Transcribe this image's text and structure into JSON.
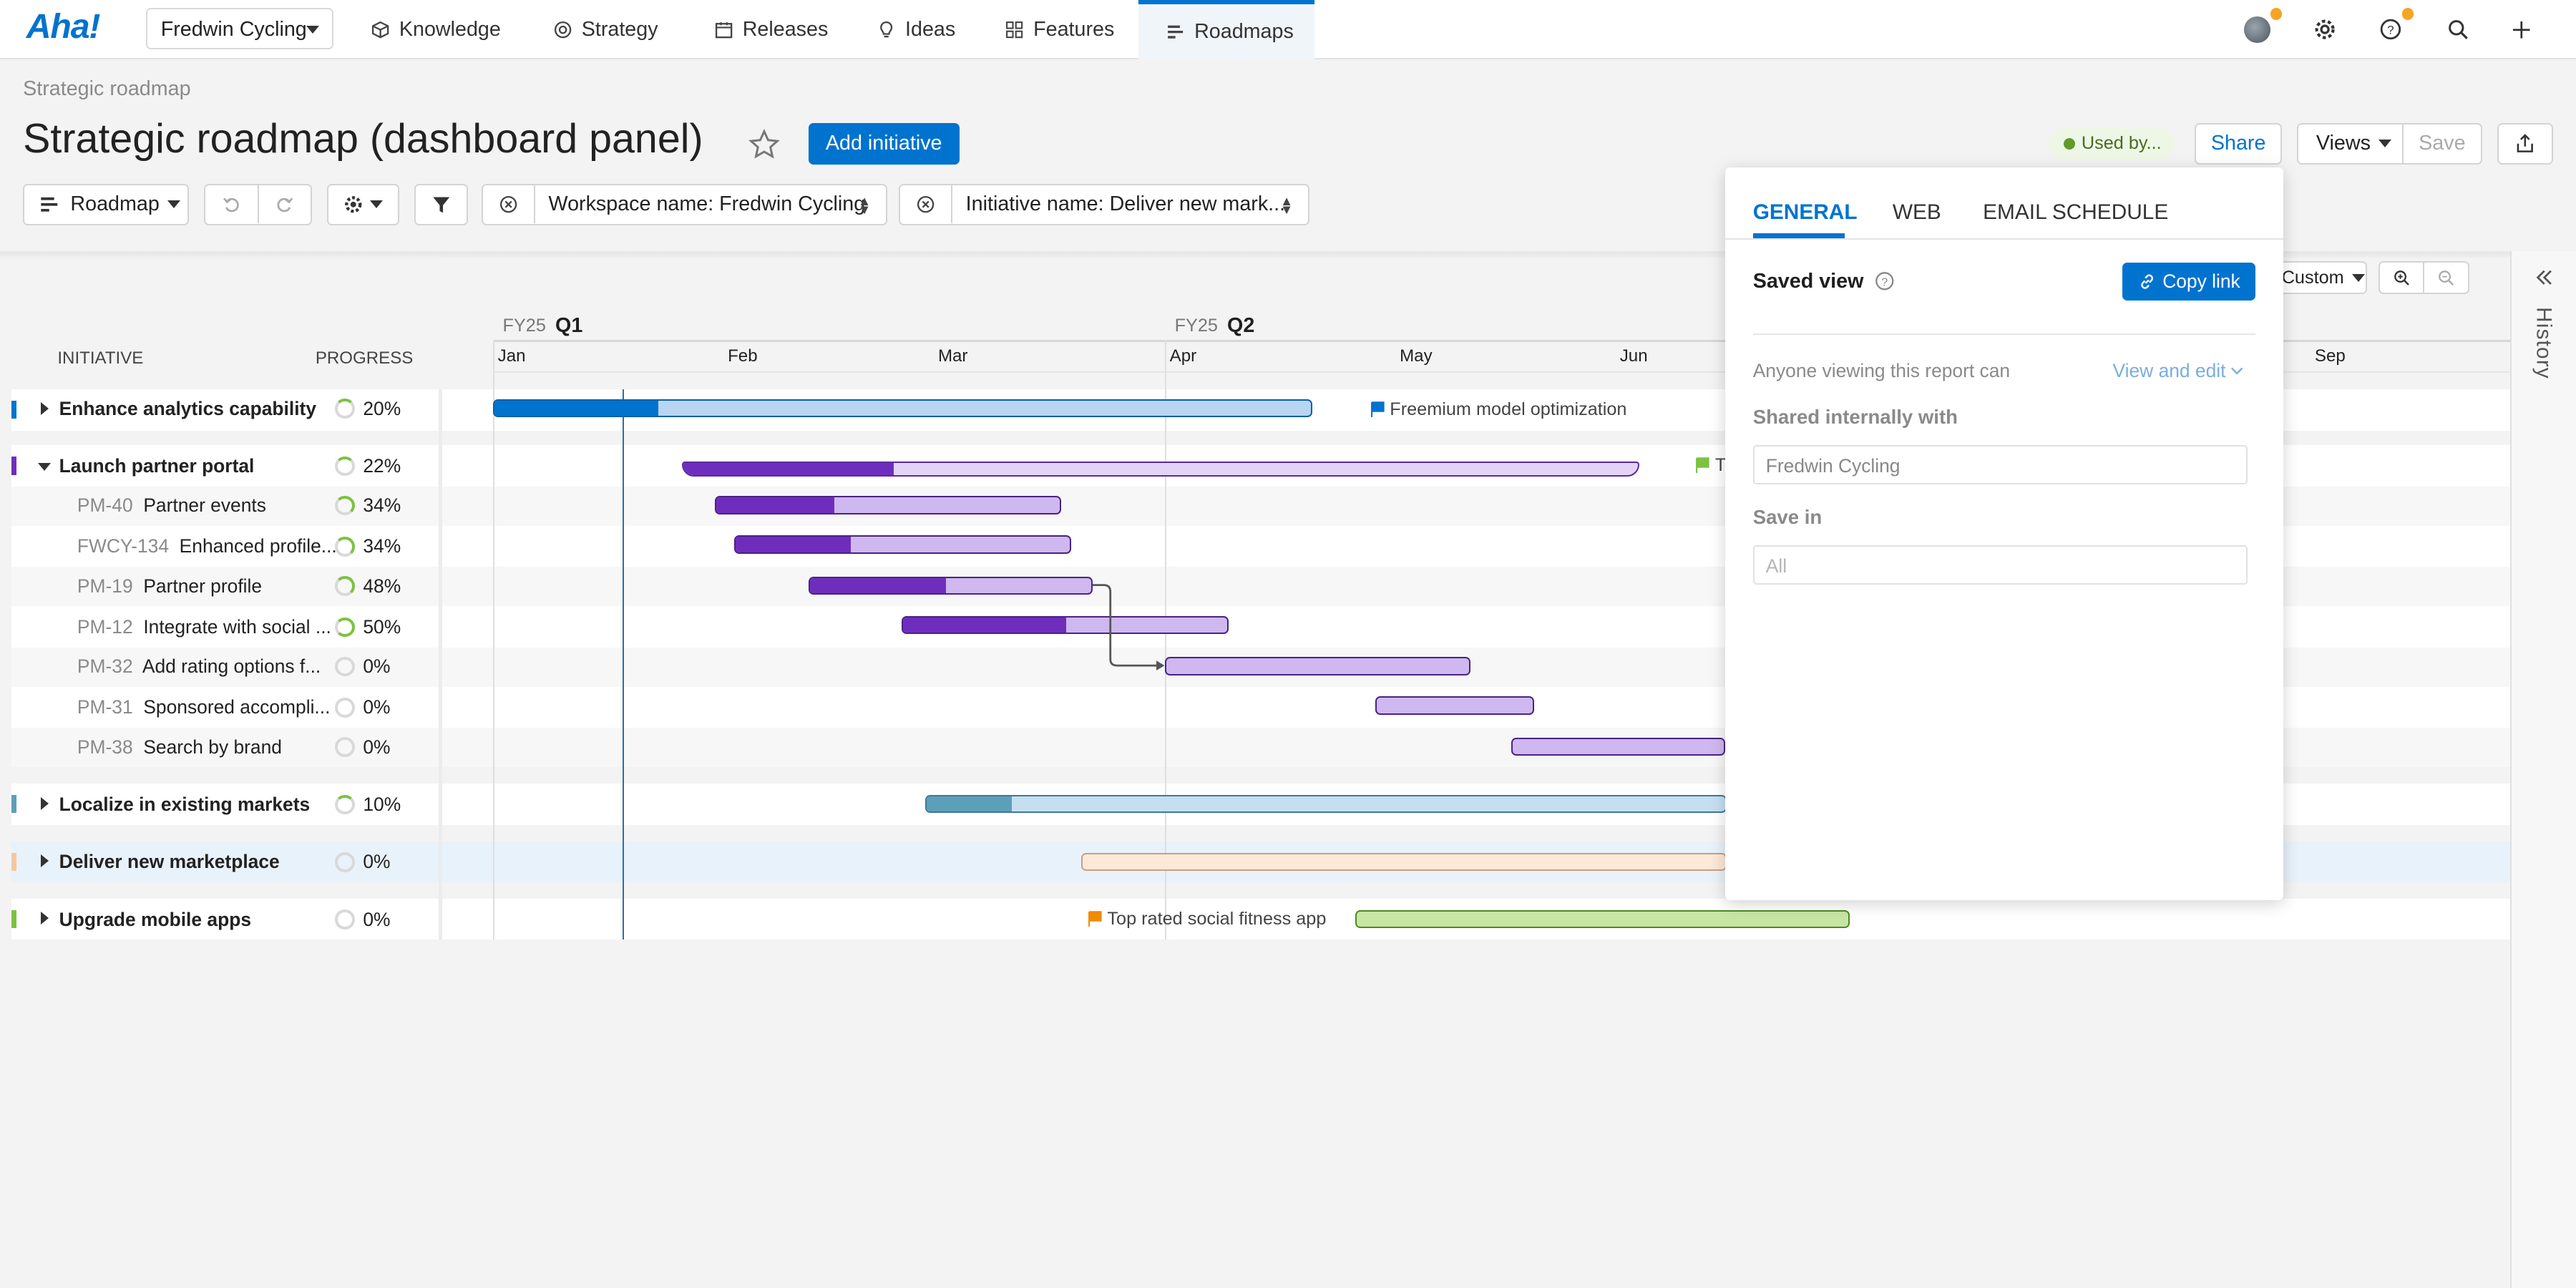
{
  "brand": {
    "logo": "Aha!"
  },
  "nav": {
    "workspace": "Fredwin Cycling",
    "items": [
      {
        "label": "Knowledge",
        "icon": "cube-icon"
      },
      {
        "label": "Strategy",
        "icon": "target-icon"
      },
      {
        "label": "Releases",
        "icon": "calendar-icon"
      },
      {
        "label": "Ideas",
        "icon": "lightbulb-icon"
      },
      {
        "label": "Features",
        "icon": "grid-icon"
      },
      {
        "label": "Roadmaps",
        "icon": "roadmap-icon",
        "active": true
      }
    ]
  },
  "header": {
    "breadcrumb": "Strategic roadmap",
    "title": "Strategic roadmap (dashboard panel)",
    "add_button": "Add initiative",
    "used_by": "Used by...",
    "share": "Share",
    "views": "Views",
    "save": "Save"
  },
  "toolbar": {
    "view_type": "Roadmap",
    "filter1": "Workspace name: Fredwin Cycling",
    "filter2": "Initiative name: Deliver new mark..."
  },
  "timeline": {
    "q1_fy": "FY25",
    "q1": "Q1",
    "q2_fy": "FY25",
    "q2": "Q2",
    "months": [
      "Jan",
      "Feb",
      "Mar",
      "Apr",
      "May",
      "Jun",
      "Sep"
    ],
    "zoom_label": "Custom"
  },
  "columns": {
    "initiative": "INITIATIVE",
    "progress": "PROGRESS"
  },
  "rows": {
    "r1": {
      "name": "Enhance analytics capability",
      "progress": "20%",
      "milestone": "Freemium model optimization"
    },
    "r2": {
      "name": "Launch partner portal",
      "progress": "22%",
      "milestone": "T"
    },
    "c1": {
      "key": "PM-40",
      "name": "Partner events",
      "progress": "34%"
    },
    "c2": {
      "key": "FWCY-134",
      "name": "Enhanced profile...",
      "progress": "34%"
    },
    "c3": {
      "key": "PM-19",
      "name": "Partner profile",
      "progress": "48%"
    },
    "c4": {
      "key": "PM-12",
      "name": "Integrate with social ...",
      "progress": "50%"
    },
    "c5": {
      "key": "PM-32",
      "name": "Add rating options f...",
      "progress": "0%"
    },
    "c6": {
      "key": "PM-31",
      "name": "Sponsored accompli...",
      "progress": "0%"
    },
    "c7": {
      "key": "PM-38",
      "name": "Search by brand",
      "progress": "0%"
    },
    "r3": {
      "name": "Localize in existing markets",
      "progress": "10%"
    },
    "r4": {
      "name": "Deliver new marketplace",
      "progress": "0%"
    },
    "r5": {
      "name": "Upgrade mobile apps",
      "progress": "0%",
      "milestone": "Top rated social fitness app"
    }
  },
  "popover": {
    "tabs": [
      "GENERAL",
      "WEB",
      "EMAIL SCHEDULE"
    ],
    "saved_view": "Saved view",
    "copy_link": "Copy link",
    "anyone_text": "Anyone viewing this report can",
    "permission": "View and edit",
    "shared_label": "Shared internally with",
    "shared_value": "Fredwin Cycling",
    "save_in_label": "Save in",
    "save_in_placeholder": "All"
  },
  "history": {
    "label": "History"
  },
  "colors": {
    "accent": "#0073cf",
    "purple": "#6f2dbd",
    "purple_light": "#cfb8ef",
    "blue_light": "#b8d6f2",
    "teal": "#5c9fb8",
    "green": "#c7e6a4",
    "peach": "#fde9d8"
  }
}
